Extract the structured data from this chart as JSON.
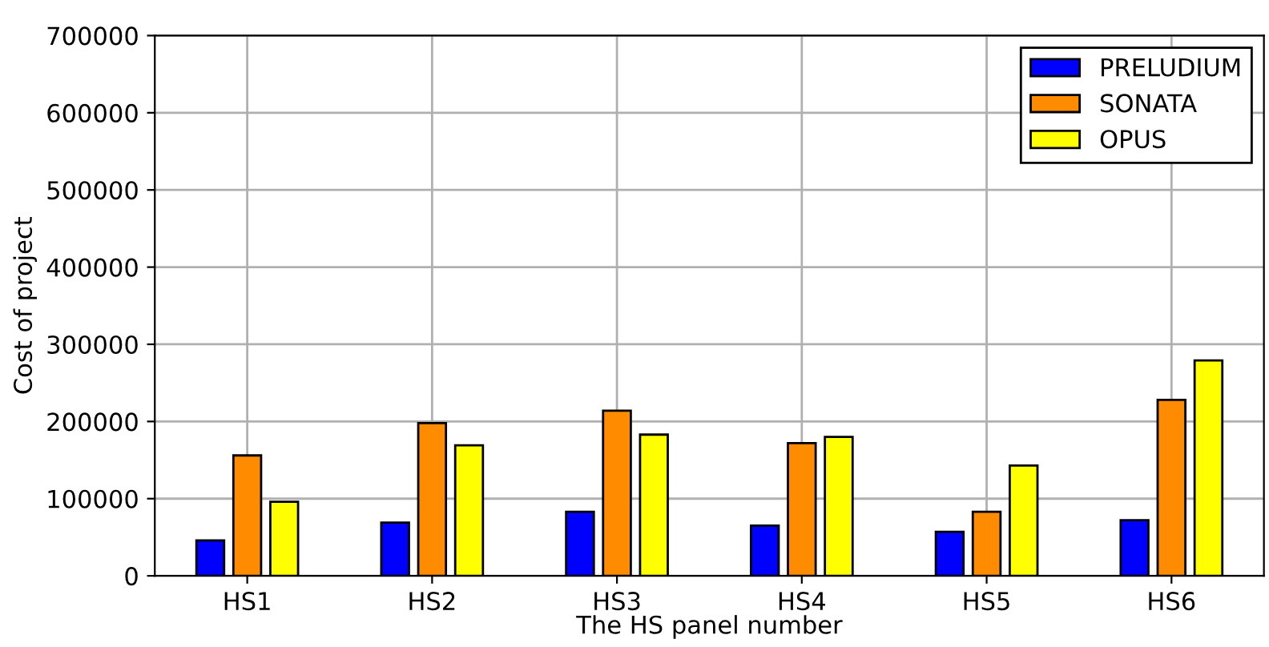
{
  "chart_data": {
    "type": "bar",
    "xlabel": "The HS panel number",
    "ylabel": "Cost of project",
    "categories": [
      "HS1",
      "HS2",
      "HS3",
      "HS4",
      "HS5",
      "HS6"
    ],
    "series": [
      {
        "name": "PRELUDIUM",
        "color": "#0000ff",
        "values": [
          46000,
          69000,
          83000,
          65000,
          57000,
          72000
        ]
      },
      {
        "name": "SONATA",
        "color": "#ff8c00",
        "values": [
          156000,
          198000,
          214000,
          172000,
          83000,
          228000
        ]
      },
      {
        "name": "OPUS",
        "color": "#ffff00",
        "values": [
          96000,
          169000,
          183000,
          180000,
          143000,
          279000
        ]
      }
    ],
    "ylim": [
      0,
      700000
    ],
    "yticks": [
      0,
      100000,
      200000,
      300000,
      400000,
      500000,
      600000,
      700000
    ],
    "grid": true,
    "legend": "top right"
  }
}
